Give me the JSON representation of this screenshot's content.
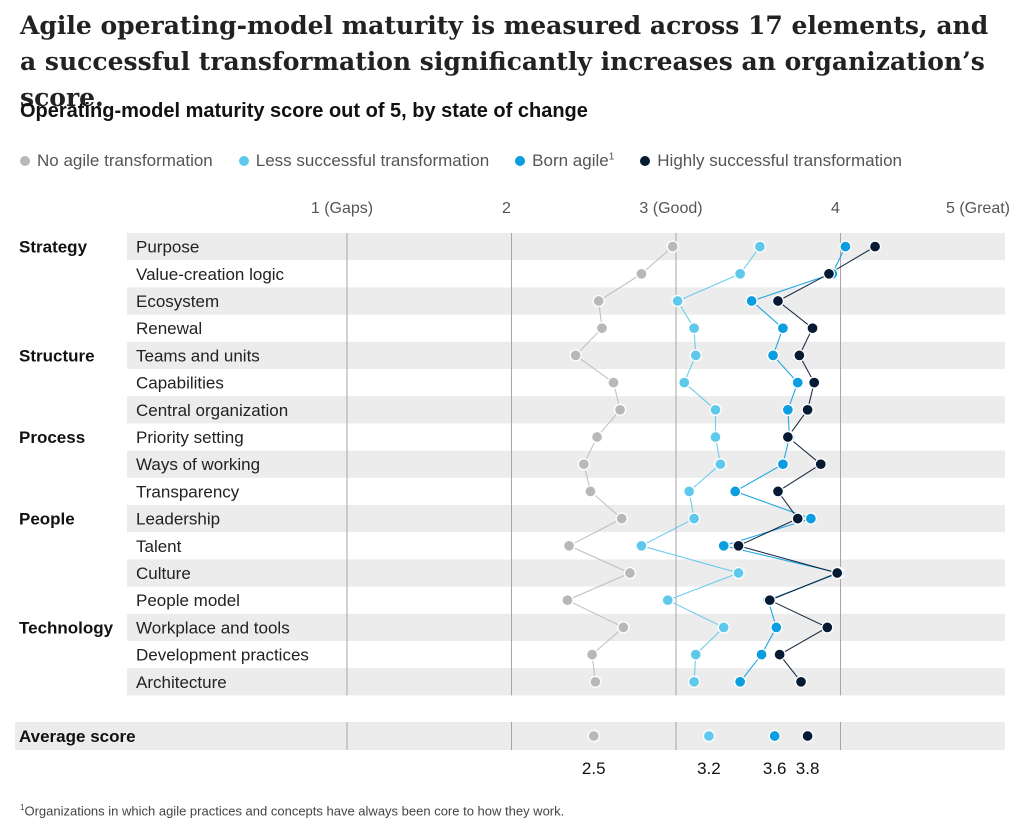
{
  "title": "Agile operating-model maturity is measured across 17 elements, and a successful transformation significantly increases an organization’s score.",
  "subtitle": "Operating-model maturity score out of 5, by state of change",
  "footnote": {
    "mark": "1",
    "text": "Organizations in which agile practices and concepts have always been core to how they work."
  },
  "chart_data": {
    "type": "scatter",
    "axis": {
      "ticks": [
        {
          "value": 1,
          "label": "1 (Gaps)"
        },
        {
          "value": 2,
          "label": "2"
        },
        {
          "value": 3,
          "label": "3 (Good)"
        },
        {
          "value": 4,
          "label": "4"
        },
        {
          "value": 5,
          "label": "5 (Great)"
        }
      ],
      "xlim": [
        1,
        5
      ]
    },
    "groups": [
      {
        "label": "Strategy",
        "start": 0
      },
      {
        "label": "Structure",
        "start": 4
      },
      {
        "label": "Process",
        "start": 7
      },
      {
        "label": "People",
        "start": 10
      },
      {
        "label": "Technology",
        "start": 14
      }
    ],
    "categories": [
      "Purpose",
      "Value-creation logic",
      "Ecosystem",
      "Renewal",
      "Teams and units",
      "Capabilities",
      "Central organization",
      "Priority setting",
      "Ways of working",
      "Transparency",
      "Leadership",
      "Talent",
      "Culture",
      "People model",
      "Workplace and tools",
      "Development practices",
      "Architecture"
    ],
    "series": [
      {
        "name": "No agile transformation",
        "sup": "",
        "color": "#b8b8b8",
        "linked": false,
        "values": [
          2.98,
          2.79,
          2.53,
          2.55,
          2.39,
          2.62,
          2.66,
          2.52,
          2.44,
          2.48,
          2.67,
          2.35,
          2.72,
          2.34,
          2.68,
          2.49,
          2.51
        ]
      },
      {
        "name": "Less successful transformation",
        "sup": "",
        "color": "#5fc9ec",
        "linked": true,
        "values": [
          3.51,
          3.39,
          3.01,
          3.11,
          3.12,
          3.05,
          3.24,
          3.24,
          3.27,
          3.08,
          3.11,
          2.79,
          3.38,
          2.95,
          3.29,
          3.12,
          3.11
        ]
      },
      {
        "name": "Born agile",
        "sup": "1",
        "color": "#0a9ee0",
        "linked": true,
        "values": [
          4.03,
          3.95,
          3.46,
          3.65,
          3.59,
          3.74,
          3.68,
          3.69,
          3.65,
          3.36,
          3.82,
          3.29,
          3.99,
          3.56,
          3.61,
          3.52,
          3.39
        ]
      },
      {
        "name": "Highly successful transformation",
        "sup": "",
        "color": "#061a33",
        "linked": true,
        "values": [
          4.21,
          3.93,
          3.62,
          3.83,
          3.75,
          3.84,
          3.8,
          3.68,
          3.88,
          3.62,
          3.74,
          3.38,
          3.98,
          3.57,
          3.92,
          3.63,
          3.76
        ]
      }
    ],
    "average": {
      "label": "Average score",
      "values": [
        2.5,
        3.2,
        3.6,
        3.8
      ],
      "value_labels": [
        "2.5",
        "3.2",
        "3.6",
        "3.8"
      ]
    }
  }
}
